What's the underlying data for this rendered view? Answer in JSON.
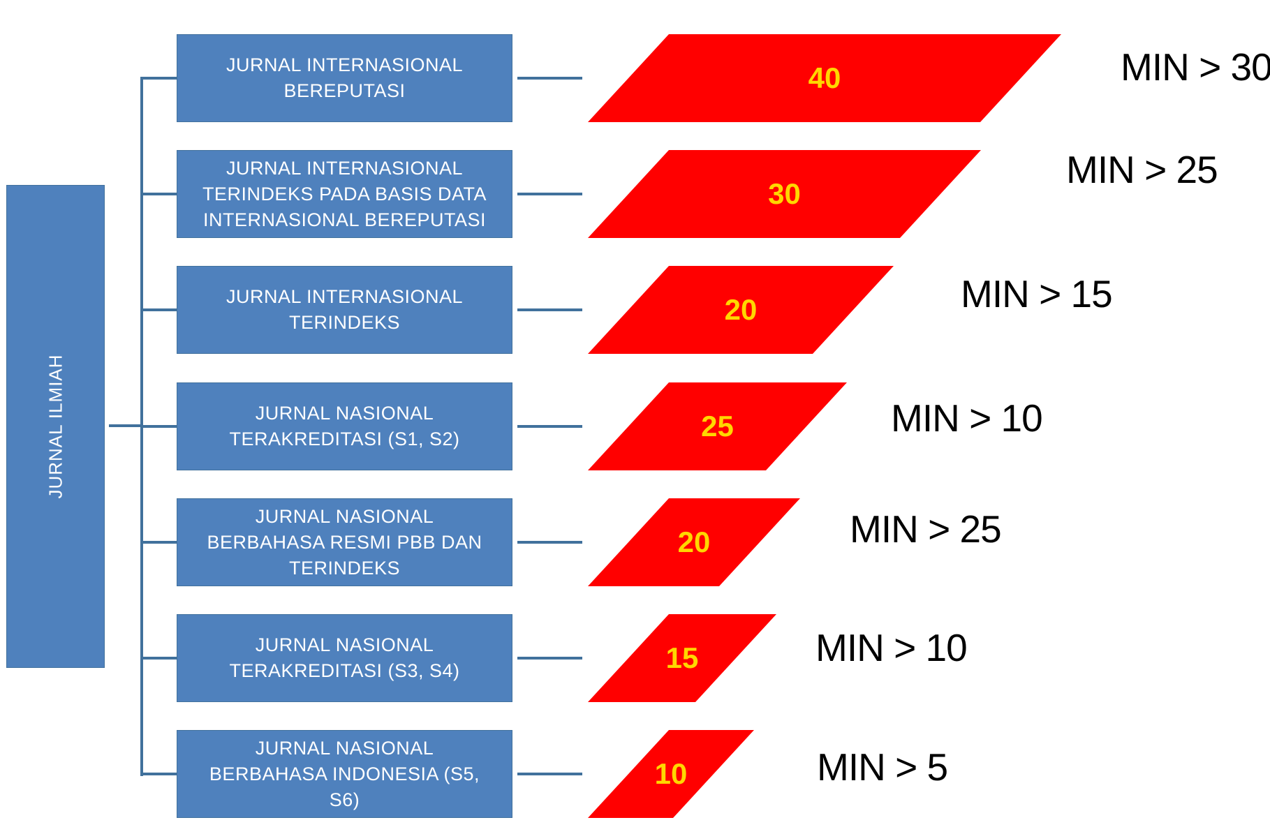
{
  "root": {
    "label": "JURNAL ILMIAH"
  },
  "colors": {
    "box_fill": "#4f81bd",
    "box_border": "#41719c",
    "connector": "#41719c",
    "score_fill": "#ff0000",
    "score_text": "#ffd700",
    "min_text": "#000000"
  },
  "rows": [
    {
      "category": "JURNAL INTERNASIONAL\nBEREPUTASI",
      "score": "40",
      "min": "MIN > 30"
    },
    {
      "category": "JURNAL INTERNASIONAL\nTERINDEKS PADA BASIS DATA\nINTERNASIONAL BEREPUTASI",
      "score": "30",
      "min": "MIN > 25"
    },
    {
      "category": "JURNAL INTERNASIONAL\nTERINDEKS",
      "score": "20",
      "min": "MIN > 15"
    },
    {
      "category": "JURNAL NASIONAL\nTERAKREDITASI (S1, S2)",
      "score": "25",
      "min": "MIN > 10"
    },
    {
      "category": "JURNAL NASIONAL\nBERBAHASA RESMI PBB DAN\nTERINDEKS",
      "score": "20",
      "min": "MIN > 25"
    },
    {
      "category": "JURNAL NASIONAL\nTERAKREDITASI (S3, S4)",
      "score": "15",
      "min": "MIN > 10"
    },
    {
      "category": "JURNAL NASIONAL\nBERBAHASA INDONESIA (S5,\nS6)",
      "score": "10",
      "min": "MIN > 5"
    }
  ]
}
